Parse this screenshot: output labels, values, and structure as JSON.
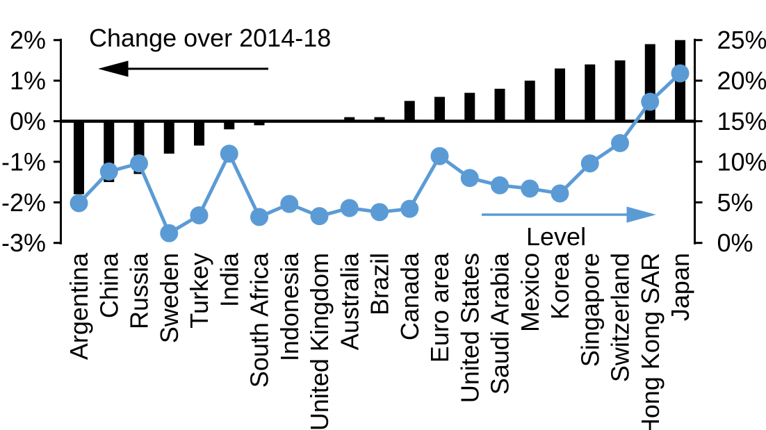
{
  "chart_data": {
    "type": "bar",
    "subtype": "dual-axis bar + line",
    "title": "",
    "grid": "off",
    "legend": "none",
    "background": "#FFFFFF",
    "categories": [
      "Argentina",
      "China",
      "Russia",
      "Sweden",
      "Turkey",
      "India",
      "South Africa",
      "Indonesia",
      "United Kingdom",
      "Australia",
      "Brazil",
      "Canada",
      "Euro area",
      "United States",
      "Saudi Arabia",
      "Mexico",
      "Korea",
      "Singapore",
      "Switzerland",
      "Hong Kong SAR",
      "Japan"
    ],
    "series": [
      {
        "name": "Change over 2014-18",
        "type": "bar",
        "axis": "left",
        "color": "#000000",
        "unit": "%",
        "values": [
          -1.8,
          -1.5,
          -1.3,
          -0.8,
          -0.6,
          -0.2,
          -0.1,
          0,
          0,
          0.1,
          0.1,
          0.5,
          0.6,
          0.7,
          0.8,
          1.0,
          1.3,
          1.4,
          1.5,
          1.9,
          2.0
        ]
      },
      {
        "name": "Level",
        "type": "line",
        "axis": "right",
        "color": "#5B9BD5",
        "unit": "%",
        "values": [
          4.9,
          8.8,
          9.8,
          1.2,
          3.4,
          11.0,
          3.2,
          4.8,
          3.3,
          4.3,
          3.8,
          4.2,
          10.7,
          8.0,
          7.1,
          6.7,
          6.1,
          9.8,
          12.3,
          17.4,
          20.9
        ]
      }
    ],
    "left_axis": {
      "min": -3,
      "max": 2,
      "tick_step": 1,
      "tick_values": [
        2,
        1,
        0,
        -1,
        -2,
        -3
      ],
      "tick_labels": [
        "2%",
        "1%",
        "0%",
        "-1%",
        "-2%",
        "-3%"
      ]
    },
    "right_axis": {
      "min": 0,
      "max": 25,
      "tick_step": 5,
      "tick_values": [
        25,
        20,
        15,
        10,
        5,
        0
      ],
      "tick_labels": [
        "25%",
        "20%",
        "15%",
        "10%",
        "5%",
        "0%"
      ]
    },
    "annotations": {
      "bar_series_label": "Change over 2014-18",
      "line_series_label": "Level"
    }
  }
}
